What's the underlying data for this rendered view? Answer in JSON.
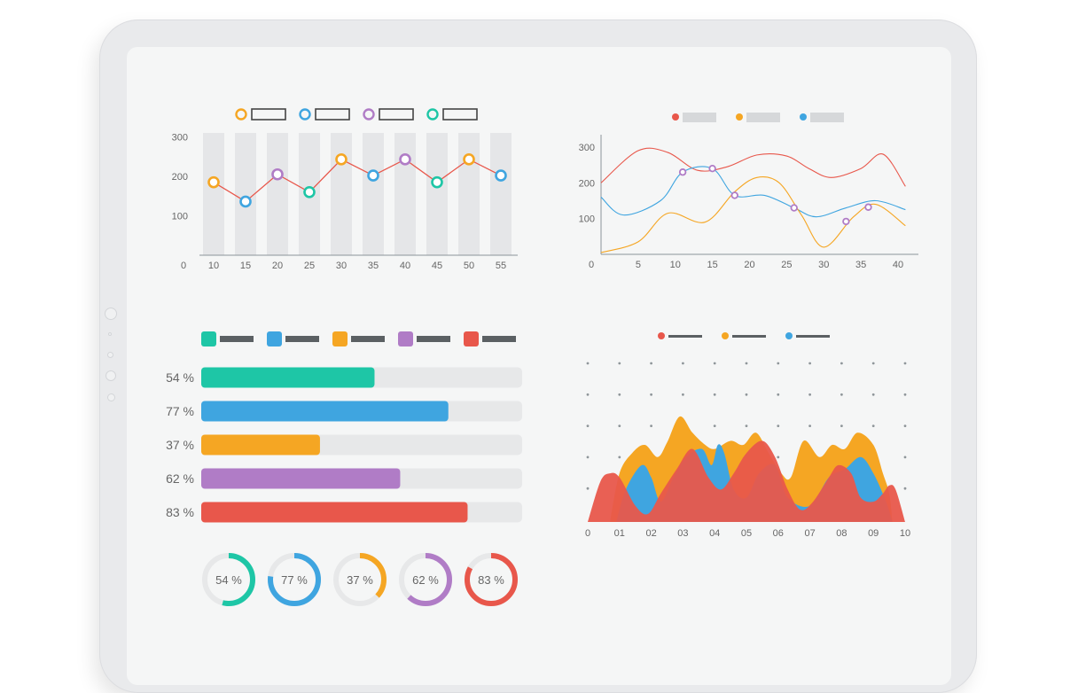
{
  "colors": {
    "orange": "#f5a623",
    "blue": "#3fa5e0",
    "purple": "#b07cc6",
    "teal": "#1ec6a6",
    "red": "#e8574b",
    "stripe": "#e5e6e8",
    "bar_track": "#e7e8e9",
    "axis": "#8a9499",
    "text": "#666666"
  },
  "chart_data": [
    {
      "type": "line",
      "id": "top-left",
      "legend": [
        {
          "color": "orange"
        },
        {
          "color": "blue"
        },
        {
          "color": "purple"
        },
        {
          "color": "teal"
        }
      ],
      "x": [
        10,
        15,
        20,
        25,
        30,
        35,
        40,
        45,
        50,
        55
      ],
      "y": [
        185,
        136,
        205,
        160,
        243,
        202,
        243,
        185,
        243,
        202
      ],
      "point_colors": [
        "orange",
        "blue",
        "purple",
        "teal",
        "orange",
        "blue",
        "purple",
        "teal",
        "orange",
        "blue"
      ],
      "x_ticks": [
        "10",
        "15",
        "20",
        "25",
        "30",
        "35",
        "40",
        "45",
        "50",
        "55"
      ],
      "y_ticks": [
        "300",
        "200",
        "100"
      ],
      "origin_label": "0",
      "ylim": [
        0,
        310
      ]
    },
    {
      "type": "line",
      "id": "top-right",
      "legend": [
        {
          "color": "red"
        },
        {
          "color": "orange"
        },
        {
          "color": "blue"
        }
      ],
      "x_ticks": [
        "5",
        "10",
        "15",
        "20",
        "25",
        "30",
        "35",
        "40"
      ],
      "y_ticks": [
        "300",
        "200",
        "100"
      ],
      "origin_label": "0",
      "xlim": [
        0,
        41
      ],
      "ylim": [
        0,
        320
      ],
      "series": [
        {
          "name": "red",
          "color": "red",
          "points": [
            [
              0,
              200
            ],
            [
              5,
              290
            ],
            [
              9,
              285
            ],
            [
              13,
              235
            ],
            [
              17,
              245
            ],
            [
              21,
              278
            ],
            [
              25,
              275
            ],
            [
              28,
              240
            ],
            [
              31,
              215
            ],
            [
              35,
              240
            ],
            [
              38,
              280
            ],
            [
              41,
              190
            ]
          ]
        },
        {
          "name": "blue",
          "color": "blue",
          "points": [
            [
              0,
              160
            ],
            [
              3,
              110
            ],
            [
              8,
              150
            ],
            [
              11,
              230
            ],
            [
              15,
              240
            ],
            [
              18,
              165
            ],
            [
              22,
              165
            ],
            [
              26,
              130
            ],
            [
              29,
              105
            ],
            [
              33,
              130
            ],
            [
              37,
              150
            ],
            [
              41,
              125
            ]
          ]
        },
        {
          "name": "orange",
          "color": "orange",
          "points": [
            [
              0,
              5
            ],
            [
              5,
              35
            ],
            [
              9,
              115
            ],
            [
              14,
              90
            ],
            [
              18,
              175
            ],
            [
              21,
              215
            ],
            [
              24,
              200
            ],
            [
              27,
              110
            ],
            [
              30,
              20
            ],
            [
              34,
              105
            ],
            [
              37,
              140
            ],
            [
              41,
              80
            ]
          ]
        }
      ],
      "markers": [
        [
          11,
          230
        ],
        [
          15,
          240
        ],
        [
          18,
          165
        ],
        [
          26,
          130
        ],
        [
          33,
          92
        ],
        [
          36,
          132
        ]
      ]
    },
    {
      "type": "bar",
      "id": "progress-bars",
      "orientation": "horizontal",
      "legend": [
        {
          "color": "teal"
        },
        {
          "color": "blue"
        },
        {
          "color": "orange"
        },
        {
          "color": "purple"
        },
        {
          "color": "red"
        }
      ],
      "labels": [
        "54 %",
        "77 %",
        "37 %",
        "62 %",
        "83 %"
      ],
      "values": [
        54,
        77,
        37,
        62,
        83
      ],
      "colors": [
        "teal",
        "blue",
        "orange",
        "purple",
        "red"
      ],
      "xlim": [
        0,
        100
      ]
    },
    {
      "type": "pie",
      "id": "donuts",
      "labels": [
        "54 %",
        "77 %",
        "37 %",
        "62 %",
        "83 %"
      ],
      "values": [
        54,
        77,
        37,
        62,
        83
      ],
      "colors": [
        "teal",
        "blue",
        "orange",
        "purple",
        "red"
      ]
    },
    {
      "type": "area",
      "id": "bottom-right",
      "legend": [
        {
          "color": "red"
        },
        {
          "color": "orange"
        },
        {
          "color": "blue"
        }
      ],
      "x_ticks": [
        "0",
        "01",
        "02",
        "03",
        "04",
        "05",
        "06",
        "07",
        "08",
        "09",
        "10"
      ],
      "xlim": [
        0,
        10
      ],
      "ylim": [
        0,
        140
      ],
      "series": [
        {
          "name": "orange",
          "color": "orange",
          "points": [
            [
              0.7,
              0
            ],
            [
              1,
              60
            ],
            [
              1.4,
              85
            ],
            [
              1.8,
              95
            ],
            [
              2.2,
              80
            ],
            [
              2.5,
              98
            ],
            [
              2.9,
              130
            ],
            [
              3.3,
              110
            ],
            [
              3.7,
              95
            ],
            [
              4.0,
              90
            ],
            [
              4.5,
              100
            ],
            [
              4.9,
              95
            ],
            [
              5.3,
              110
            ],
            [
              5.7,
              85
            ],
            [
              6.1,
              60
            ],
            [
              6.4,
              55
            ],
            [
              6.8,
              100
            ],
            [
              7.3,
              80
            ],
            [
              7.7,
              95
            ],
            [
              8.1,
              90
            ],
            [
              8.5,
              110
            ],
            [
              9.0,
              95
            ],
            [
              9.3,
              60
            ],
            [
              9.5,
              35
            ],
            [
              9.6,
              0
            ]
          ]
        },
        {
          "name": "blue",
          "color": "blue",
          "points": [
            [
              0.9,
              0
            ],
            [
              1.2,
              40
            ],
            [
              1.7,
              70
            ],
            [
              2.0,
              55
            ],
            [
              2.3,
              25
            ],
            [
              2.7,
              55
            ],
            [
              3.1,
              80
            ],
            [
              3.6,
              90
            ],
            [
              3.9,
              70
            ],
            [
              4.1,
              95
            ],
            [
              4.3,
              85
            ],
            [
              4.6,
              40
            ],
            [
              5.0,
              30
            ],
            [
              5.4,
              60
            ],
            [
              5.9,
              70
            ],
            [
              6.3,
              30
            ],
            [
              7.0,
              20
            ],
            [
              7.6,
              55
            ],
            [
              8.1,
              65
            ],
            [
              8.6,
              80
            ],
            [
              9.0,
              60
            ],
            [
              9.4,
              25
            ],
            [
              9.6,
              0
            ]
          ]
        },
        {
          "name": "red",
          "color": "red",
          "points": [
            [
              0,
              0
            ],
            [
              0.4,
              50
            ],
            [
              0.7,
              60
            ],
            [
              1.0,
              55
            ],
            [
              1.5,
              20
            ],
            [
              1.9,
              10
            ],
            [
              2.3,
              35
            ],
            [
              2.8,
              65
            ],
            [
              3.3,
              90
            ],
            [
              3.8,
              55
            ],
            [
              4.2,
              40
            ],
            [
              4.6,
              60
            ],
            [
              5.0,
              85
            ],
            [
              5.5,
              100
            ],
            [
              5.9,
              80
            ],
            [
              6.3,
              40
            ],
            [
              6.7,
              15
            ],
            [
              7.1,
              25
            ],
            [
              7.6,
              55
            ],
            [
              7.9,
              70
            ],
            [
              8.3,
              60
            ],
            [
              8.6,
              30
            ],
            [
              9.0,
              25
            ],
            [
              9.3,
              35
            ],
            [
              9.5,
              45
            ],
            [
              9.7,
              40
            ],
            [
              10,
              0
            ]
          ]
        }
      ]
    }
  ]
}
